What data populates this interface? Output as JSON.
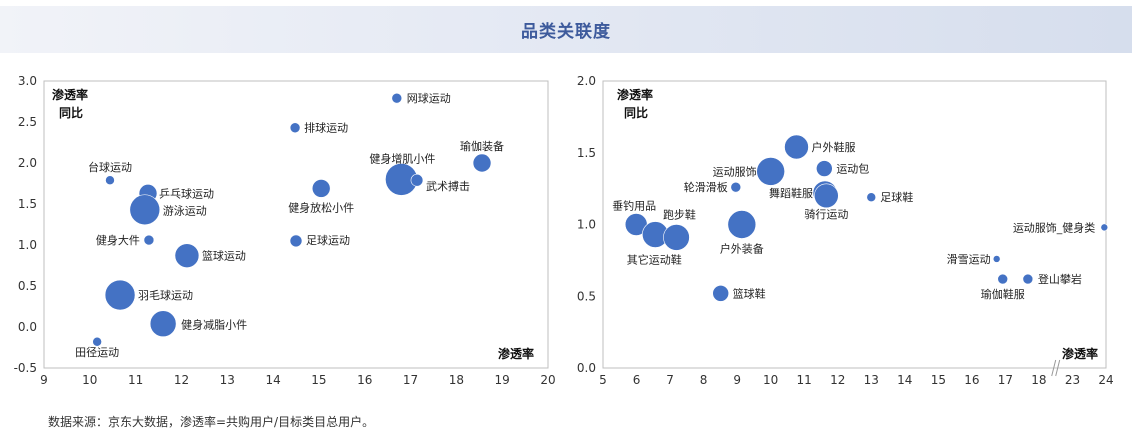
{
  "title": "品类关联度",
  "footnote": "数据来源：京东大数据，渗透率=共购用户/目标类目总用户。",
  "bubble_color": "#4472c4",
  "chart_data": [
    {
      "type": "scatter",
      "bubble": true,
      "xlabel": "渗透率",
      "ylabel_line1": "渗透率",
      "ylabel_line2": "同比",
      "xlim": [
        9,
        20
      ],
      "ylim": [
        -0.5,
        3.0
      ],
      "xticks": [
        "9",
        "10",
        "11",
        "12",
        "13",
        "14",
        "15",
        "16",
        "17",
        "18",
        "19",
        "20"
      ],
      "yticks": [
        "-0.5",
        "0.0",
        "0.5",
        "1.0",
        "1.5",
        "2.0",
        "2.5",
        "3.0"
      ],
      "points": [
        {
          "name": "网球运动",
          "x": 16.7,
          "y": 2.79,
          "size": 5
        },
        {
          "name": "排球运动",
          "x": 14.48,
          "y": 2.43,
          "size": 5
        },
        {
          "name": "瑜伽装备",
          "x": 18.56,
          "y": 2.0,
          "size": 9
        },
        {
          "name": "健身增肌小件",
          "x": 16.8,
          "y": 1.8,
          "size": 16
        },
        {
          "name": "武术搏击",
          "x": 17.14,
          "y": 1.79,
          "size": 6
        },
        {
          "name": "健身放松小件",
          "x": 15.05,
          "y": 1.69,
          "size": 9
        },
        {
          "name": "台球运动",
          "x": 10.44,
          "y": 1.79,
          "size": 4.5
        },
        {
          "name": "乒乓球运动",
          "x": 11.27,
          "y": 1.63,
          "size": 9
        },
        {
          "name": "游泳运动",
          "x": 11.2,
          "y": 1.43,
          "size": 15
        },
        {
          "name": "健身大件",
          "x": 11.29,
          "y": 1.06,
          "size": 5
        },
        {
          "name": "足球运动",
          "x": 14.5,
          "y": 1.05,
          "size": 6
        },
        {
          "name": "篮球运动",
          "x": 12.12,
          "y": 0.87,
          "size": 12
        },
        {
          "name": "羽毛球运动",
          "x": 10.66,
          "y": 0.39,
          "size": 15
        },
        {
          "name": "健身减脂小件",
          "x": 11.6,
          "y": 0.04,
          "size": 13
        },
        {
          "name": "田径运动",
          "x": 10.16,
          "y": -0.18,
          "size": 4.5
        }
      ]
    },
    {
      "type": "scatter",
      "bubble": true,
      "xlabel": "渗透率",
      "ylabel_line1": "渗透率",
      "ylabel_line2": "同比",
      "xlim": [
        5,
        24
      ],
      "x_axis_break": [
        18,
        23
      ],
      "ylim": [
        0.0,
        2.0
      ],
      "xticks": [
        "5",
        "6",
        "7",
        "8",
        "9",
        "10",
        "11",
        "12",
        "13",
        "14",
        "15",
        "16",
        "17",
        "18",
        "23",
        "24"
      ],
      "yticks": [
        "0.0",
        "0.5",
        "1.0",
        "1.5",
        "2.0"
      ],
      "points": [
        {
          "name": "户外鞋服",
          "x": 10.77,
          "y": 1.54,
          "size": 12
        },
        {
          "name": "运动包",
          "x": 11.6,
          "y": 1.39,
          "size": 8
        },
        {
          "name": "运动服饰",
          "x": 10.0,
          "y": 1.37,
          "size": 14
        },
        {
          "name": "轮滑滑板",
          "x": 8.96,
          "y": 1.26,
          "size": 5
        },
        {
          "name": "舞蹈鞋服",
          "x": 11.62,
          "y": 1.22,
          "size": 12
        },
        {
          "name": "骑行运动",
          "x": 11.66,
          "y": 1.2,
          "size": 12
        },
        {
          "name": "足球鞋",
          "x": 13.0,
          "y": 1.19,
          "size": 4.5
        },
        {
          "name": "垂钓用品",
          "x": 5.99,
          "y": 1.0,
          "size": 11
        },
        {
          "name": "其它运动鞋",
          "x": 6.56,
          "y": 0.93,
          "size": 13
        },
        {
          "name": "跑步鞋",
          "x": 7.19,
          "y": 0.91,
          "size": 13
        },
        {
          "name": "户外装备",
          "x": 9.14,
          "y": 1.0,
          "size": 14
        },
        {
          "name": "篮球鞋",
          "x": 8.51,
          "y": 0.52,
          "size": 8
        },
        {
          "name": "运动服饰_健身类",
          "x": 23.95,
          "y": 0.98,
          "size": 3.5
        },
        {
          "name": "滑雪运动",
          "x": 16.74,
          "y": 0.76,
          "size": 3.5
        },
        {
          "name": "瑜伽鞋服",
          "x": 16.92,
          "y": 0.62,
          "size": 5
        },
        {
          "name": "登山攀岩",
          "x": 17.67,
          "y": 0.62,
          "size": 5
        }
      ]
    }
  ]
}
